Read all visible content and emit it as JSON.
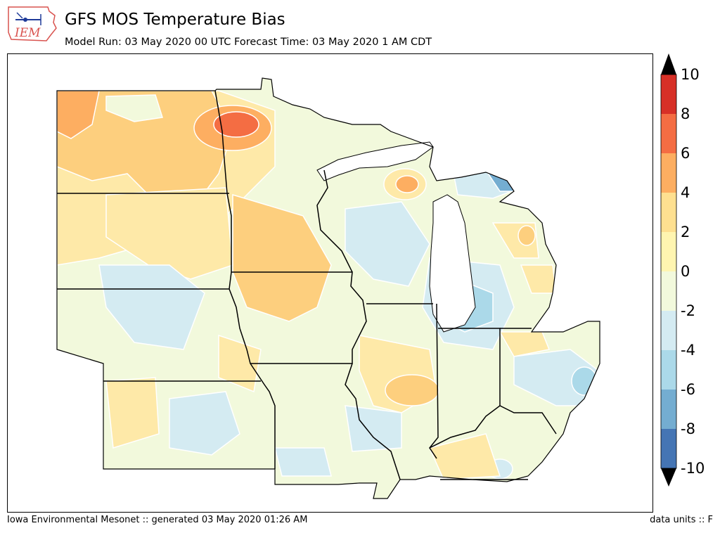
{
  "header": {
    "logo_text": "IEM",
    "title": "GFS MOS Temperature Bias",
    "subtitle": "Model Run: 03 May 2020 00 UTC Forecast Time: 03 May 2020 1 AM CDT"
  },
  "colorbar": {
    "ticks": [
      "10",
      "8",
      "6",
      "4",
      "2",
      "0",
      "-2",
      "-4",
      "-6",
      "-8",
      "-10"
    ],
    "colors": [
      "#d73027",
      "#f46d43",
      "#fdae61",
      "#fee090",
      "#fff5b0",
      "#f2f9dc",
      "#d4ebf2",
      "#abd9e9",
      "#74add1",
      "#4575b4"
    ]
  },
  "map": {
    "colors": {
      "strong_warm": "#f46d43",
      "warm": "#fdae61",
      "mild_warm": "#fdcf7e",
      "slight_warm": "#fee9a8",
      "neutral": "#f2f9dc",
      "slight_cool": "#d4ebf2",
      "cool": "#abd9e9",
      "strong_cool": "#74add1",
      "contour": "#ffffff",
      "boundary": "#000000"
    }
  },
  "footer": {
    "left": "Iowa Environmental Mesonet :: generated 03 May 2020 01:26 AM",
    "right": "data units :: F"
  }
}
